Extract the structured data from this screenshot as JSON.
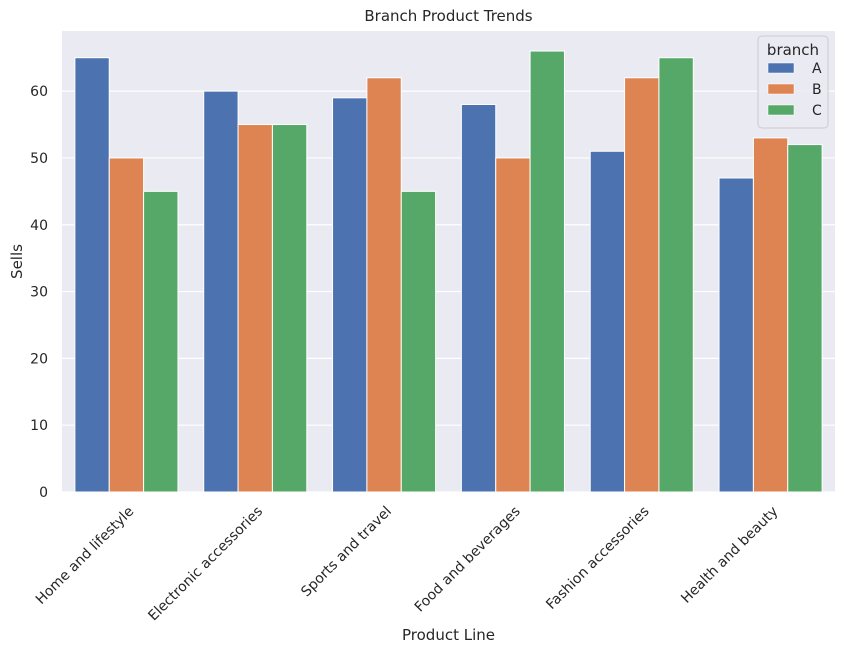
{
  "chart_data": {
    "type": "bar",
    "title": "Branch Product Trends",
    "xlabel": "Product Line",
    "ylabel": "Sells",
    "categories": [
      "Home and lifestyle",
      "Electronic accessories",
      "Sports and travel",
      "Food and beverages",
      "Fashion accessories",
      "Health and beauty"
    ],
    "series": [
      {
        "name": "A",
        "color": "#4c72b0",
        "values": [
          65,
          60,
          59,
          58,
          51,
          47
        ]
      },
      {
        "name": "B",
        "color": "#dd8452",
        "values": [
          50,
          55,
          62,
          50,
          62,
          53
        ]
      },
      {
        "name": "C",
        "color": "#55a868",
        "values": [
          45,
          55,
          45,
          66,
          65,
          52
        ]
      }
    ],
    "ylim": [
      0,
      69
    ],
    "yticks": [
      0,
      10,
      20,
      30,
      40,
      50,
      60
    ],
    "grid": true,
    "legend": {
      "title": "branch",
      "placement": "top-right"
    },
    "background": "#eaeaf2"
  }
}
